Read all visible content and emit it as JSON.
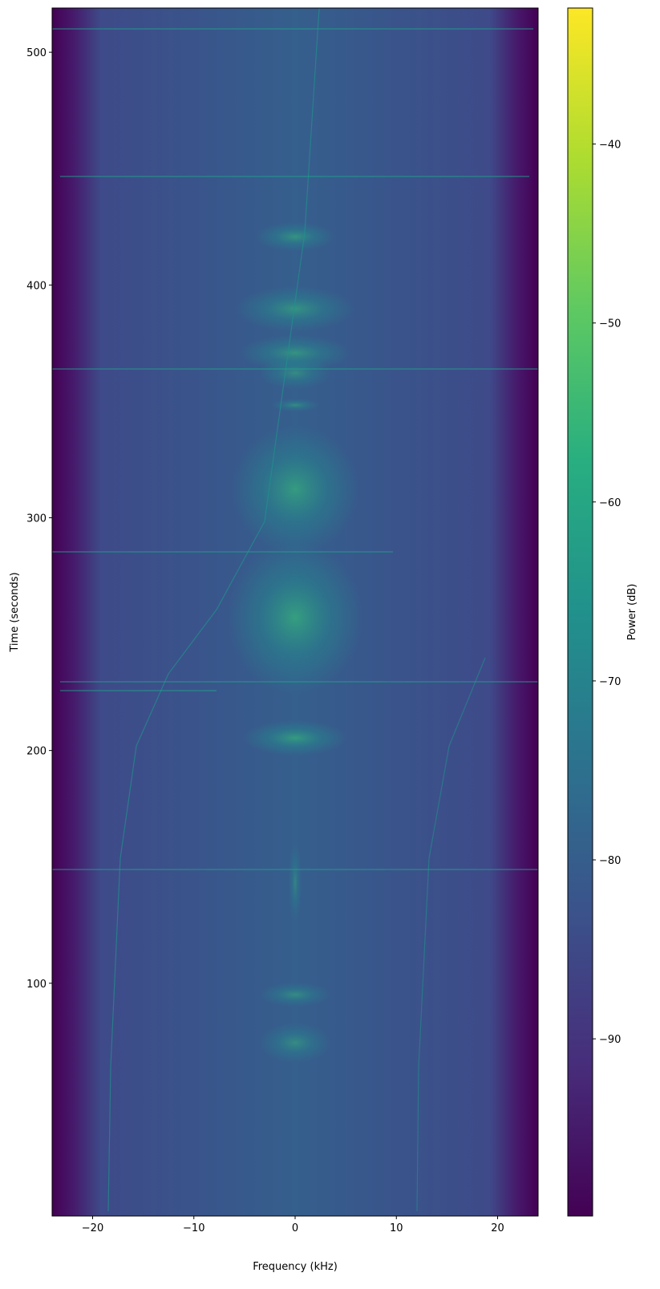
{
  "chart_data": {
    "type": "spectrogram",
    "x_label": "Frequency (kHz)",
    "y_label": "Time (seconds)",
    "xlim": [
      -24,
      24
    ],
    "xticks": [
      {
        "value": -20,
        "label": "−20"
      },
      {
        "value": -10,
        "label": "−10"
      },
      0,
      10,
      20
    ],
    "ylim": [
      0,
      519
    ],
    "yticks": [
      100,
      200,
      300,
      400,
      500
    ],
    "colormap": "viridis",
    "colorbar": {
      "label": "Power (dB)",
      "lim": [
        -99.9,
        -32.4
      ],
      "ticks": [
        {
          "value": -90,
          "label": "−90"
        },
        {
          "value": -80,
          "label": "−80"
        },
        {
          "value": -70,
          "label": "−70"
        },
        {
          "value": -60,
          "label": "−60"
        },
        {
          "value": -50,
          "label": "−50"
        },
        {
          "value": -40,
          "label": "−40"
        }
      ]
    }
  }
}
